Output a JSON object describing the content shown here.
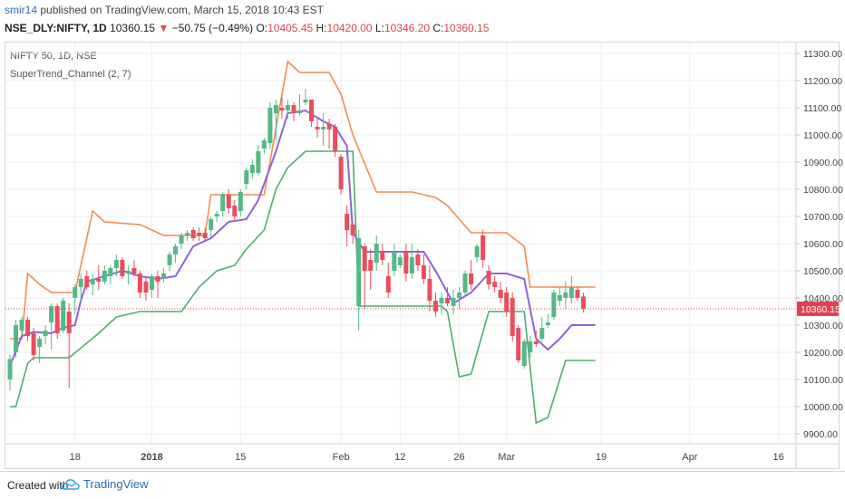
{
  "header": {
    "user": "smir14",
    "published": "published on TradingView.com, March 15, 2018 10:43 EST"
  },
  "ohlc": {
    "symbol": "NSE_DLY:NIFTY, 1D",
    "last": "10360.15",
    "change": "−50.75 (−0.49%)",
    "o_label": "O:",
    "o": "10405.45",
    "h_label": "H:",
    "h": "10420.00",
    "l_label": "L:",
    "l": "10346.20",
    "c_label": "C:",
    "c": "10360.15"
  },
  "legend": {
    "instrument": "NIFTY 50, 1D, NSE",
    "indicator": "SuperTrend_Channel (2, 7)"
  },
  "footer": {
    "created_with": "Created with",
    "brand": "TradingView"
  },
  "colors": {
    "up": "#53b987",
    "down": "#eb4d5c",
    "upper_band": "#f28c51",
    "lower_band": "#4caf6e",
    "supertrend": "#8e62d9",
    "price_line": "#e0424f",
    "grid": "#eeeeee"
  },
  "chart_data": {
    "type": "candlestick",
    "symbol": "NIFTY 50",
    "interval": "1D",
    "ylim": [
      9850,
      11350
    ],
    "yticks": [
      9900,
      10000,
      10100,
      10200,
      10300,
      10400,
      10500,
      10600,
      10700,
      10800,
      10900,
      11000,
      11100,
      11200,
      11300
    ],
    "ytick_labels": [
      "9900.00",
      "10000.00",
      "10100.00",
      "10200.00",
      "10300.00",
      "10400.00",
      "10500.00",
      "10600.00",
      "10700.00",
      "10800.00",
      "10900.00",
      "11000.00",
      "11100.00",
      "11200.00",
      "11300.00"
    ],
    "x_count": 100,
    "xticks": [
      {
        "i": 11,
        "label": "18",
        "bold": false
      },
      {
        "i": 24,
        "label": "2018",
        "bold": true
      },
      {
        "i": 39,
        "label": "15",
        "bold": false
      },
      {
        "i": 56,
        "label": "Feb",
        "bold": false
      },
      {
        "i": 66,
        "label": "12",
        "bold": false
      },
      {
        "i": 76,
        "label": "26",
        "bold": false
      },
      {
        "i": 84,
        "label": "Mar",
        "bold": false
      },
      {
        "i": 100,
        "label": "19",
        "bold": false
      },
      {
        "i": 115,
        "label": "Apr",
        "bold": false
      },
      {
        "i": 130,
        "label": "16",
        "bold": false
      }
    ],
    "last_price": 10360.15,
    "last_price_label": "10360.15",
    "candles": [
      {
        "o": 10100,
        "h": 10190,
        "l": 10060,
        "c": 10175
      },
      {
        "o": 10200,
        "h": 10320,
        "l": 10180,
        "c": 10300
      },
      {
        "o": 10280,
        "h": 10330,
        "l": 10260,
        "c": 10320
      },
      {
        "o": 10320,
        "h": 10330,
        "l": 10240,
        "c": 10260
      },
      {
        "o": 10270,
        "h": 10290,
        "l": 10170,
        "c": 10190
      },
      {
        "o": 10220,
        "h": 10260,
        "l": 10160,
        "c": 10250
      },
      {
        "o": 10260,
        "h": 10300,
        "l": 10230,
        "c": 10280
      },
      {
        "o": 10310,
        "h": 10380,
        "l": 10210,
        "c": 10370
      },
      {
        "o": 10370,
        "h": 10380,
        "l": 10250,
        "c": 10270
      },
      {
        "o": 10280,
        "h": 10400,
        "l": 10270,
        "c": 10390
      },
      {
        "o": 10350,
        "h": 10380,
        "l": 10070,
        "c": 10270
      },
      {
        "o": 10400,
        "h": 10450,
        "l": 10340,
        "c": 10440
      },
      {
        "o": 10440,
        "h": 10490,
        "l": 10380,
        "c": 10470
      },
      {
        "o": 10480,
        "h": 10500,
        "l": 10430,
        "c": 10440
      },
      {
        "o": 10450,
        "h": 10490,
        "l": 10410,
        "c": 10470
      },
      {
        "o": 10470,
        "h": 10520,
        "l": 10430,
        "c": 10460
      },
      {
        "o": 10460,
        "h": 10520,
        "l": 10450,
        "c": 10500
      },
      {
        "o": 10480,
        "h": 10520,
        "l": 10450,
        "c": 10510
      },
      {
        "o": 10510,
        "h": 10560,
        "l": 10480,
        "c": 10540
      },
      {
        "o": 10540,
        "h": 10550,
        "l": 10470,
        "c": 10480
      },
      {
        "o": 10490,
        "h": 10520,
        "l": 10450,
        "c": 10500
      },
      {
        "o": 10510,
        "h": 10540,
        "l": 10480,
        "c": 10490
      },
      {
        "o": 10490,
        "h": 10500,
        "l": 10400,
        "c": 10420
      },
      {
        "o": 10460,
        "h": 10480,
        "l": 10390,
        "c": 10420
      },
      {
        "o": 10430,
        "h": 10490,
        "l": 10400,
        "c": 10480
      },
      {
        "o": 10480,
        "h": 10500,
        "l": 10400,
        "c": 10460
      },
      {
        "o": 10470,
        "h": 10510,
        "l": 10460,
        "c": 10490
      },
      {
        "o": 10520,
        "h": 10570,
        "l": 10500,
        "c": 10560
      },
      {
        "o": 10560,
        "h": 10600,
        "l": 10530,
        "c": 10590
      },
      {
        "o": 10600,
        "h": 10640,
        "l": 10580,
        "c": 10630
      },
      {
        "o": 10630,
        "h": 10650,
        "l": 10610,
        "c": 10640
      },
      {
        "o": 10650,
        "h": 10660,
        "l": 10610,
        "c": 10620
      },
      {
        "o": 10640,
        "h": 10660,
        "l": 10610,
        "c": 10630
      },
      {
        "o": 10640,
        "h": 10660,
        "l": 10610,
        "c": 10620
      },
      {
        "o": 10650,
        "h": 10700,
        "l": 10620,
        "c": 10690
      },
      {
        "o": 10700,
        "h": 10720,
        "l": 10680,
        "c": 10710
      },
      {
        "o": 10720,
        "h": 10790,
        "l": 10700,
        "c": 10780
      },
      {
        "o": 10780,
        "h": 10800,
        "l": 10710,
        "c": 10730
      },
      {
        "o": 10740,
        "h": 10760,
        "l": 10680,
        "c": 10700
      },
      {
        "o": 10720,
        "h": 10800,
        "l": 10700,
        "c": 10790
      },
      {
        "o": 10820,
        "h": 10880,
        "l": 10800,
        "c": 10870
      },
      {
        "o": 10860,
        "h": 10910,
        "l": 10840,
        "c": 10890
      },
      {
        "o": 10860,
        "h": 10960,
        "l": 10850,
        "c": 10940
      },
      {
        "o": 10950,
        "h": 10990,
        "l": 10930,
        "c": 10980
      },
      {
        "o": 10970,
        "h": 11120,
        "l": 10950,
        "c": 11100
      },
      {
        "o": 11080,
        "h": 11130,
        "l": 10980,
        "c": 11110
      },
      {
        "o": 11100,
        "h": 11140,
        "l": 11060,
        "c": 11090
      },
      {
        "o": 11090,
        "h": 11130,
        "l": 11060,
        "c": 11110
      },
      {
        "o": 11110,
        "h": 11120,
        "l": 11050,
        "c": 11080
      },
      {
        "o": 11080,
        "h": 11150,
        "l": 11070,
        "c": 11090
      },
      {
        "o": 11120,
        "h": 11170,
        "l": 11110,
        "c": 11130
      },
      {
        "o": 11130,
        "h": 11130,
        "l": 11030,
        "c": 11050
      },
      {
        "o": 11030,
        "h": 11060,
        "l": 10990,
        "c": 11020
      },
      {
        "o": 11020,
        "h": 11080,
        "l": 10960,
        "c": 11030
      },
      {
        "o": 11040,
        "h": 11060,
        "l": 10950,
        "c": 11020
      },
      {
        "o": 11030,
        "h": 11040,
        "l": 10920,
        "c": 10940
      },
      {
        "o": 10920,
        "h": 10930,
        "l": 10780,
        "c": 10800
      },
      {
        "o": 10710,
        "h": 10740,
        "l": 10590,
        "c": 10650
      },
      {
        "o": 10670,
        "h": 10680,
        "l": 10600,
        "c": 10630
      },
      {
        "o": 10370,
        "h": 10650,
        "l": 10280,
        "c": 10620
      },
      {
        "o": 10590,
        "h": 10600,
        "l": 10360,
        "c": 10500
      },
      {
        "o": 10540,
        "h": 10580,
        "l": 10430,
        "c": 10500
      },
      {
        "o": 10530,
        "h": 10630,
        "l": 10500,
        "c": 10600
      },
      {
        "o": 10570,
        "h": 10600,
        "l": 10520,
        "c": 10540
      },
      {
        "o": 10480,
        "h": 10530,
        "l": 10400,
        "c": 10420
      },
      {
        "o": 10500,
        "h": 10600,
        "l": 10480,
        "c": 10570
      },
      {
        "o": 10520,
        "h": 10560,
        "l": 10510,
        "c": 10550
      },
      {
        "o": 10570,
        "h": 10600,
        "l": 10460,
        "c": 10490
      },
      {
        "o": 10490,
        "h": 10600,
        "l": 10470,
        "c": 10550
      },
      {
        "o": 10560,
        "h": 10580,
        "l": 10500,
        "c": 10520
      },
      {
        "o": 10520,
        "h": 10560,
        "l": 10450,
        "c": 10470
      },
      {
        "o": 10470,
        "h": 10520,
        "l": 10350,
        "c": 10390
      },
      {
        "o": 10390,
        "h": 10420,
        "l": 10330,
        "c": 10350
      },
      {
        "o": 10380,
        "h": 10420,
        "l": 10340,
        "c": 10400
      },
      {
        "o": 10400,
        "h": 10440,
        "l": 10370,
        "c": 10380
      },
      {
        "o": 10370,
        "h": 10430,
        "l": 10340,
        "c": 10400
      },
      {
        "o": 10400,
        "h": 10440,
        "l": 10360,
        "c": 10420
      },
      {
        "o": 10420,
        "h": 10500,
        "l": 10410,
        "c": 10490
      },
      {
        "o": 10490,
        "h": 10540,
        "l": 10430,
        "c": 10450
      },
      {
        "o": 10550,
        "h": 10600,
        "l": 10530,
        "c": 10590
      },
      {
        "o": 10630,
        "h": 10650,
        "l": 10510,
        "c": 10540
      },
      {
        "o": 10500,
        "h": 10520,
        "l": 10430,
        "c": 10450
      },
      {
        "o": 10460,
        "h": 10480,
        "l": 10420,
        "c": 10440
      },
      {
        "o": 10430,
        "h": 10460,
        "l": 10380,
        "c": 10400
      },
      {
        "o": 10420,
        "h": 10440,
        "l": 10330,
        "c": 10350
      },
      {
        "o": 10400,
        "h": 10420,
        "l": 10240,
        "c": 10260
      },
      {
        "o": 10290,
        "h": 10300,
        "l": 10160,
        "c": 10170
      },
      {
        "o": 10150,
        "h": 10250,
        "l": 10140,
        "c": 10240
      },
      {
        "o": 10200,
        "h": 10260,
        "l": 10180,
        "c": 10240
      },
      {
        "o": 10240,
        "h": 10280,
        "l": 10220,
        "c": 10230
      },
      {
        "o": 10250,
        "h": 10330,
        "l": 10240,
        "c": 10290
      },
      {
        "o": 10300,
        "h": 10340,
        "l": 10290,
        "c": 10310
      },
      {
        "o": 10330,
        "h": 10430,
        "l": 10320,
        "c": 10420
      },
      {
        "o": 10390,
        "h": 10440,
        "l": 10370,
        "c": 10410
      },
      {
        "o": 10400,
        "h": 10460,
        "l": 10360,
        "c": 10420
      },
      {
        "o": 10400,
        "h": 10480,
        "l": 10380,
        "c": 10440
      },
      {
        "o": 10430,
        "h": 10440,
        "l": 10390,
        "c": 10400
      },
      {
        "o": 10405.45,
        "h": 10420,
        "l": 10346.2,
        "c": 10360.15
      }
    ],
    "upper_band": [
      {
        "i": 0,
        "v": 10250
      },
      {
        "i": 2,
        "v": 10250
      },
      {
        "i": 3,
        "v": 10490
      },
      {
        "i": 5,
        "v": 10450
      },
      {
        "i": 7,
        "v": 10420
      },
      {
        "i": 11,
        "v": 10420
      },
      {
        "i": 14,
        "v": 10720
      },
      {
        "i": 16,
        "v": 10680
      },
      {
        "i": 22,
        "v": 10670
      },
      {
        "i": 26,
        "v": 10630
      },
      {
        "i": 33,
        "v": 10630
      },
      {
        "i": 34,
        "v": 10780
      },
      {
        "i": 43,
        "v": 10780
      },
      {
        "i": 47,
        "v": 11270
      },
      {
        "i": 49,
        "v": 11230
      },
      {
        "i": 54,
        "v": 11230
      },
      {
        "i": 56,
        "v": 11150
      },
      {
        "i": 58,
        "v": 11000
      },
      {
        "i": 62,
        "v": 10790
      },
      {
        "i": 68,
        "v": 10790
      },
      {
        "i": 72,
        "v": 10770
      },
      {
        "i": 74,
        "v": 10740
      },
      {
        "i": 78,
        "v": 10640
      },
      {
        "i": 84,
        "v": 10640
      },
      {
        "i": 87,
        "v": 10590
      },
      {
        "i": 88,
        "v": 10440
      },
      {
        "i": 99,
        "v": 10440
      }
    ],
    "lower_band": [
      {
        "i": 0,
        "v": 10000
      },
      {
        "i": 1,
        "v": 10000
      },
      {
        "i": 3,
        "v": 10160
      },
      {
        "i": 4,
        "v": 10180
      },
      {
        "i": 10,
        "v": 10180
      },
      {
        "i": 15,
        "v": 10270
      },
      {
        "i": 18,
        "v": 10330
      },
      {
        "i": 22,
        "v": 10350
      },
      {
        "i": 29,
        "v": 10350
      },
      {
        "i": 32,
        "v": 10440
      },
      {
        "i": 35,
        "v": 10500
      },
      {
        "i": 38,
        "v": 10520
      },
      {
        "i": 40,
        "v": 10580
      },
      {
        "i": 43,
        "v": 10650
      },
      {
        "i": 45,
        "v": 10800
      },
      {
        "i": 47,
        "v": 10880
      },
      {
        "i": 50,
        "v": 10940
      },
      {
        "i": 58,
        "v": 10940
      },
      {
        "i": 59,
        "v": 10370
      },
      {
        "i": 73,
        "v": 10370
      },
      {
        "i": 74,
        "v": 10350
      },
      {
        "i": 76,
        "v": 10110
      },
      {
        "i": 78,
        "v": 10120
      },
      {
        "i": 81,
        "v": 10350
      },
      {
        "i": 87,
        "v": 10350
      },
      {
        "i": 89,
        "v": 9940
      },
      {
        "i": 91,
        "v": 9960
      },
      {
        "i": 94,
        "v": 10170
      },
      {
        "i": 99,
        "v": 10170
      }
    ],
    "supertrend": [
      {
        "i": 0,
        "v": 10150
      },
      {
        "i": 2,
        "v": 10260
      },
      {
        "i": 4,
        "v": 10275
      },
      {
        "i": 7,
        "v": 10270
      },
      {
        "i": 9,
        "v": 10290
      },
      {
        "i": 11,
        "v": 10300
      },
      {
        "i": 12,
        "v": 10390
      },
      {
        "i": 13,
        "v": 10460
      },
      {
        "i": 19,
        "v": 10500
      },
      {
        "i": 22,
        "v": 10480
      },
      {
        "i": 25,
        "v": 10470
      },
      {
        "i": 28,
        "v": 10480
      },
      {
        "i": 31,
        "v": 10590
      },
      {
        "i": 34,
        "v": 10620
      },
      {
        "i": 37,
        "v": 10680
      },
      {
        "i": 40,
        "v": 10690
      },
      {
        "i": 42,
        "v": 10760
      },
      {
        "i": 45,
        "v": 10940
      },
      {
        "i": 47,
        "v": 11080
      },
      {
        "i": 50,
        "v": 11090
      },
      {
        "i": 53,
        "v": 11050
      },
      {
        "i": 55,
        "v": 11030
      },
      {
        "i": 57,
        "v": 10960
      },
      {
        "i": 58,
        "v": 10640
      },
      {
        "i": 60,
        "v": 10570
      },
      {
        "i": 63,
        "v": 10570
      },
      {
        "i": 70,
        "v": 10570
      },
      {
        "i": 72,
        "v": 10500
      },
      {
        "i": 75,
        "v": 10380
      },
      {
        "i": 78,
        "v": 10420
      },
      {
        "i": 81,
        "v": 10490
      },
      {
        "i": 84,
        "v": 10490
      },
      {
        "i": 87,
        "v": 10470
      },
      {
        "i": 89,
        "v": 10250
      },
      {
        "i": 91,
        "v": 10210
      },
      {
        "i": 93,
        "v": 10250
      },
      {
        "i": 95,
        "v": 10300
      },
      {
        "i": 99,
        "v": 10300
      }
    ],
    "grid": true
  }
}
